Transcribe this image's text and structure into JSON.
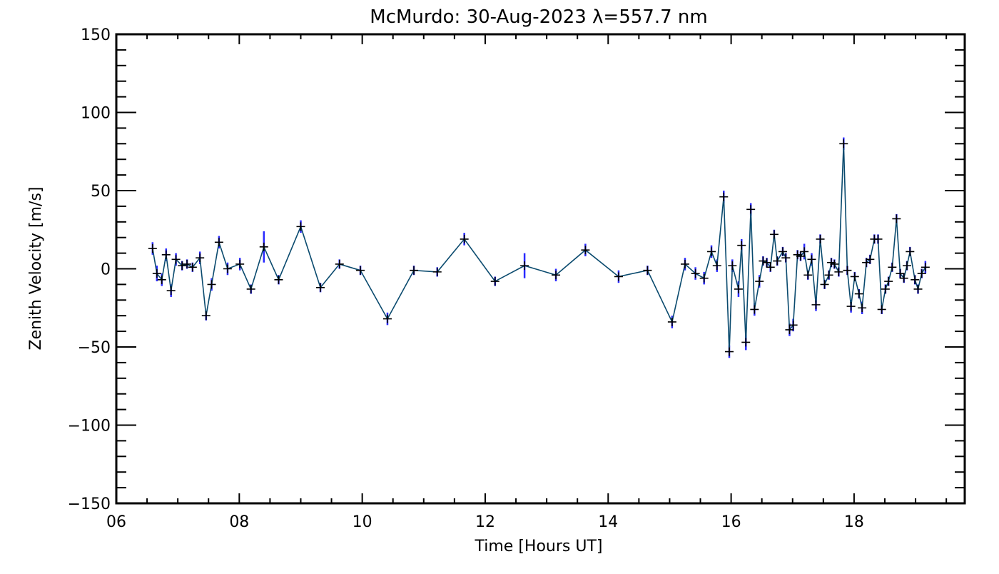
{
  "chart_data": {
    "type": "line",
    "title": "McMurdo: 30-Aug-2023 λ=557.7 nm",
    "xlabel": "Time [Hours UT]",
    "ylabel": "Zenith Velocity [m/s]",
    "xlim": [
      6,
      19.8
    ],
    "ylim": [
      -150,
      150
    ],
    "xticks": [
      6,
      8,
      10,
      12,
      14,
      16,
      18
    ],
    "xtick_labels": [
      "06",
      "08",
      "10",
      "12",
      "14",
      "16",
      "18"
    ],
    "yticks": [
      -150,
      -100,
      -50,
      0,
      50,
      100,
      150
    ],
    "ytick_labels": [
      "−150",
      "−100",
      "−50",
      "0",
      "50",
      "100",
      "150"
    ],
    "grid": false,
    "colors": {
      "line": "#0a4a6e",
      "errorbar": "#2a2aff",
      "marker": "#000000"
    },
    "series": [
      {
        "name": "Zenith Velocity",
        "x": [
          6.59,
          6.66,
          6.74,
          6.81,
          6.89,
          6.97,
          7.07,
          7.15,
          7.24,
          7.36,
          7.46,
          7.55,
          7.67,
          7.81,
          8.01,
          8.19,
          8.4,
          8.64,
          9.0,
          9.32,
          9.63,
          9.97,
          10.41,
          10.84,
          11.22,
          11.66,
          12.16,
          12.64,
          13.15,
          13.63,
          14.17,
          14.64,
          15.04,
          15.25,
          15.42,
          15.56,
          15.68,
          15.77,
          15.88,
          15.97,
          16.02,
          16.12,
          16.17,
          16.24,
          16.32,
          16.38,
          16.46,
          16.52,
          16.58,
          16.64,
          16.7,
          16.75,
          16.84,
          16.89,
          16.95,
          17.01,
          17.08,
          17.13,
          17.19,
          17.25,
          17.31,
          17.38,
          17.45,
          17.52,
          17.59,
          17.63,
          17.68,
          17.75,
          17.83,
          17.89,
          17.95,
          18.01,
          18.08,
          18.13,
          18.2,
          18.26,
          18.33,
          18.39,
          18.45,
          18.51,
          18.56,
          18.62,
          18.69,
          18.75,
          18.81,
          18.86,
          18.91,
          18.99,
          19.04,
          19.1,
          19.16
        ],
        "y": [
          13,
          -3,
          -7,
          9,
          -14,
          6,
          2,
          3,
          1,
          7,
          -30,
          -10,
          17,
          0,
          3,
          -13,
          14,
          -7,
          27,
          -12,
          3,
          -1,
          -32,
          -1,
          -2,
          19,
          -8,
          2,
          -4,
          12,
          -5,
          -1,
          -34,
          3,
          -3,
          -6,
          11,
          2,
          46,
          -53,
          2,
          -13,
          15,
          -47,
          38,
          -26,
          -8,
          5,
          4,
          1,
          22,
          5,
          11,
          7,
          -39,
          -36,
          9,
          8,
          11,
          -4,
          6,
          -23,
          19,
          -10,
          -4,
          4,
          3,
          -2,
          80,
          -1,
          -24,
          -5,
          -16,
          -25,
          4,
          6,
          19,
          19,
          -26,
          -13,
          -8,
          1,
          32,
          -3,
          -6,
          2,
          11,
          -7,
          -13,
          -3,
          1
        ],
        "err": [
          4,
          5,
          4,
          4,
          4,
          4,
          3,
          3,
          3,
          4,
          3,
          4,
          4,
          4,
          4,
          3,
          10,
          3,
          4,
          3,
          3,
          3,
          4,
          3,
          3,
          4,
          3,
          8,
          4,
          4,
          4,
          3,
          4,
          4,
          4,
          4,
          4,
          4,
          4,
          4,
          4,
          5,
          4,
          5,
          4,
          4,
          4,
          3,
          3,
          3,
          3,
          3,
          3,
          3,
          4,
          4,
          3,
          3,
          5,
          3,
          4,
          4,
          3,
          3,
          3,
          3,
          3,
          3,
          4,
          3,
          4,
          3,
          3,
          4,
          3,
          3,
          3,
          3,
          3,
          3,
          3,
          3,
          3,
          3,
          3,
          3,
          3,
          3,
          3,
          3,
          4
        ]
      }
    ]
  }
}
